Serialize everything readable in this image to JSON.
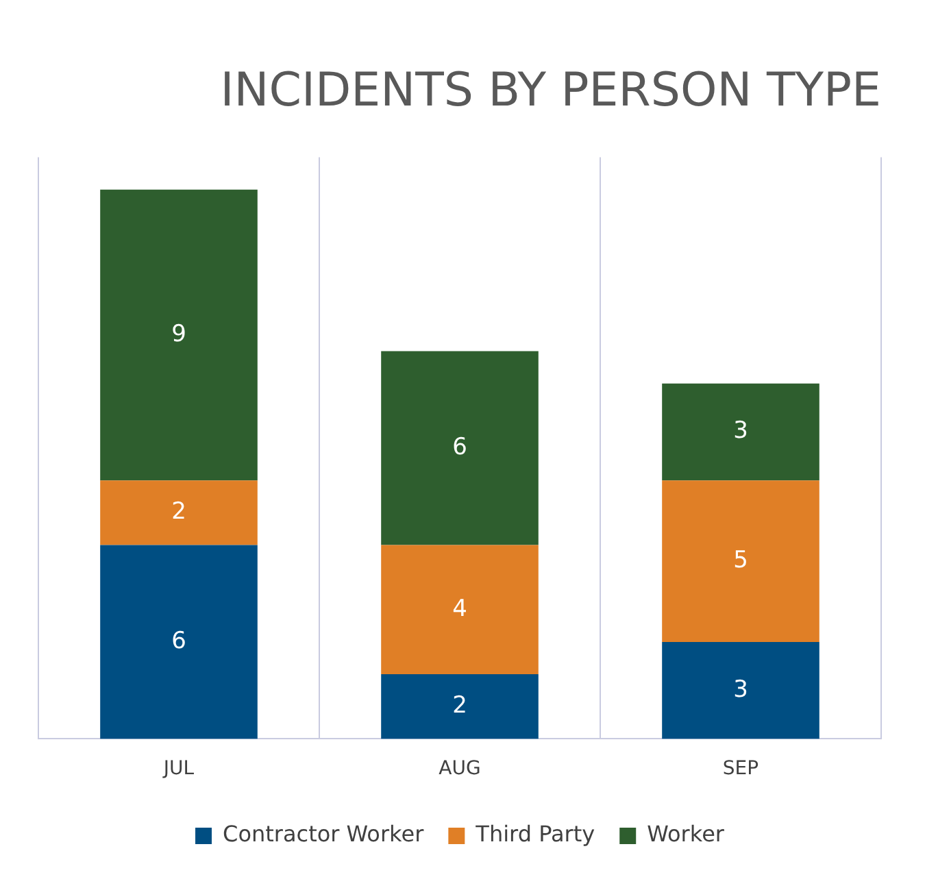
{
  "chart_data": {
    "type": "bar",
    "title": "INCIDENTS BY PERSON TYPE",
    "categories": [
      "JUL",
      "AUG",
      "SEP"
    ],
    "stacked": true,
    "data_labels": true,
    "grid": "x",
    "legend": "bottom",
    "series": [
      {
        "name": "Contractor Worker",
        "color": "#004e82",
        "values": [
          6,
          2,
          3
        ]
      },
      {
        "name": "Third Party",
        "color": "#e07f26",
        "values": [
          2,
          4,
          5
        ]
      },
      {
        "name": "Worker",
        "color": "#2e5e2e",
        "values": [
          9,
          6,
          3
        ]
      }
    ]
  }
}
